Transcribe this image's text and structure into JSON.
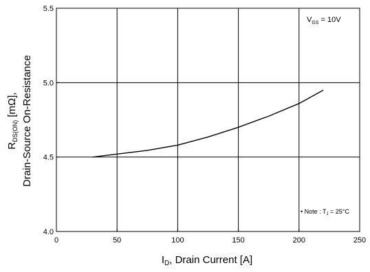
{
  "chart_data": {
    "type": "line",
    "xlabel_main": "I",
    "xlabel_sub": "D",
    "xlabel_rest": ", Drain Current [A]",
    "ylabel_line1_main": "R",
    "ylabel_line1_sub": "DS(ON)",
    "ylabel_line1_rest": " [mΩ],",
    "ylabel_line2": "Drain-Source On-Resistance",
    "xlim": [
      0,
      250
    ],
    "ylim": [
      4.0,
      5.5
    ],
    "x_ticks": [
      0,
      50,
      100,
      150,
      200,
      250
    ],
    "x_tick_labels": [
      "0",
      "50",
      "100",
      "150",
      "200",
      "250"
    ],
    "y_ticks": [
      4.0,
      4.5,
      5.0,
      5.5
    ],
    "y_tick_labels": [
      "4.0",
      "4.5",
      "5.0",
      "5.5"
    ],
    "grid": true,
    "series": [
      {
        "x": [
          30,
          50,
          75,
          100,
          125,
          150,
          175,
          200,
          220
        ],
        "y": [
          4.5,
          4.52,
          4.545,
          4.58,
          4.635,
          4.7,
          4.775,
          4.86,
          4.95
        ]
      }
    ],
    "annotations": {
      "vgs_main": "V",
      "vgs_sub": "GS",
      "vgs_rest": " = 10V",
      "note_bullet": "•",
      "note_main": " Note : T",
      "note_sub": "J",
      "note_rest": " = 25°C"
    }
  },
  "colors": {
    "line": "#000000",
    "grid": "#000000",
    "background": "#ffffff"
  }
}
